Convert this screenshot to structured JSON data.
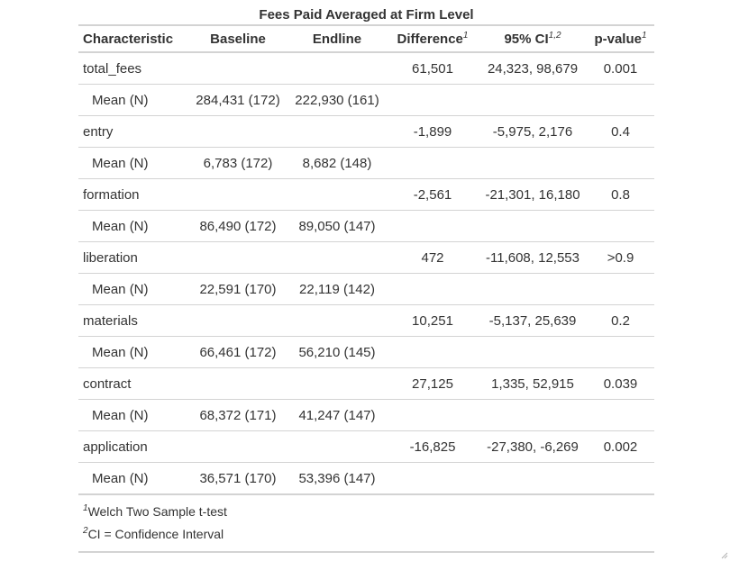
{
  "table": {
    "title": "Fees Paid Averaged at Firm Level",
    "headers": {
      "characteristic": "Characteristic",
      "baseline": "Baseline",
      "endline": "Endline",
      "difference": "Difference",
      "difference_mark": "1",
      "ci": "95% CI",
      "ci_mark": "1,2",
      "pvalue": "p-value",
      "pvalue_mark": "1"
    },
    "variables": [
      {
        "name": "total_fees",
        "difference": "61,501",
        "ci": "24,323, 98,679",
        "pvalue": "0.001",
        "stat_label": "Mean (N)",
        "baseline": "284,431 (172)",
        "endline": "222,930 (161)"
      },
      {
        "name": "entry",
        "difference": "-1,899",
        "ci": "-5,975, 2,176",
        "pvalue": "0.4",
        "stat_label": "Mean (N)",
        "baseline": "6,783 (172)",
        "endline": "8,682 (148)"
      },
      {
        "name": "formation",
        "difference": "-2,561",
        "ci": "-21,301, 16,180",
        "pvalue": "0.8",
        "stat_label": "Mean (N)",
        "baseline": "86,490 (172)",
        "endline": "89,050 (147)"
      },
      {
        "name": "liberation",
        "difference": "472",
        "ci": "-11,608, 12,553",
        "pvalue": ">0.9",
        "stat_label": "Mean (N)",
        "baseline": "22,591 (170)",
        "endline": "22,119 (142)"
      },
      {
        "name": "materials",
        "difference": "10,251",
        "ci": "-5,137, 25,639",
        "pvalue": "0.2",
        "stat_label": "Mean (N)",
        "baseline": "66,461 (172)",
        "endline": "56,210 (145)"
      },
      {
        "name": "contract",
        "difference": "27,125",
        "ci": "1,335, 52,915",
        "pvalue": "0.039",
        "stat_label": "Mean (N)",
        "baseline": "68,372 (171)",
        "endline": "41,247 (147)"
      },
      {
        "name": "application",
        "difference": "-16,825",
        "ci": "-27,380, -6,269",
        "pvalue": "0.002",
        "stat_label": "Mean (N)",
        "baseline": "36,571 (170)",
        "endline": "53,396 (147)"
      }
    ],
    "footnotes": [
      {
        "mark": "1",
        "text": "Welch Two Sample t-test"
      },
      {
        "mark": "2",
        "text": "CI = Confidence Interval"
      }
    ]
  }
}
